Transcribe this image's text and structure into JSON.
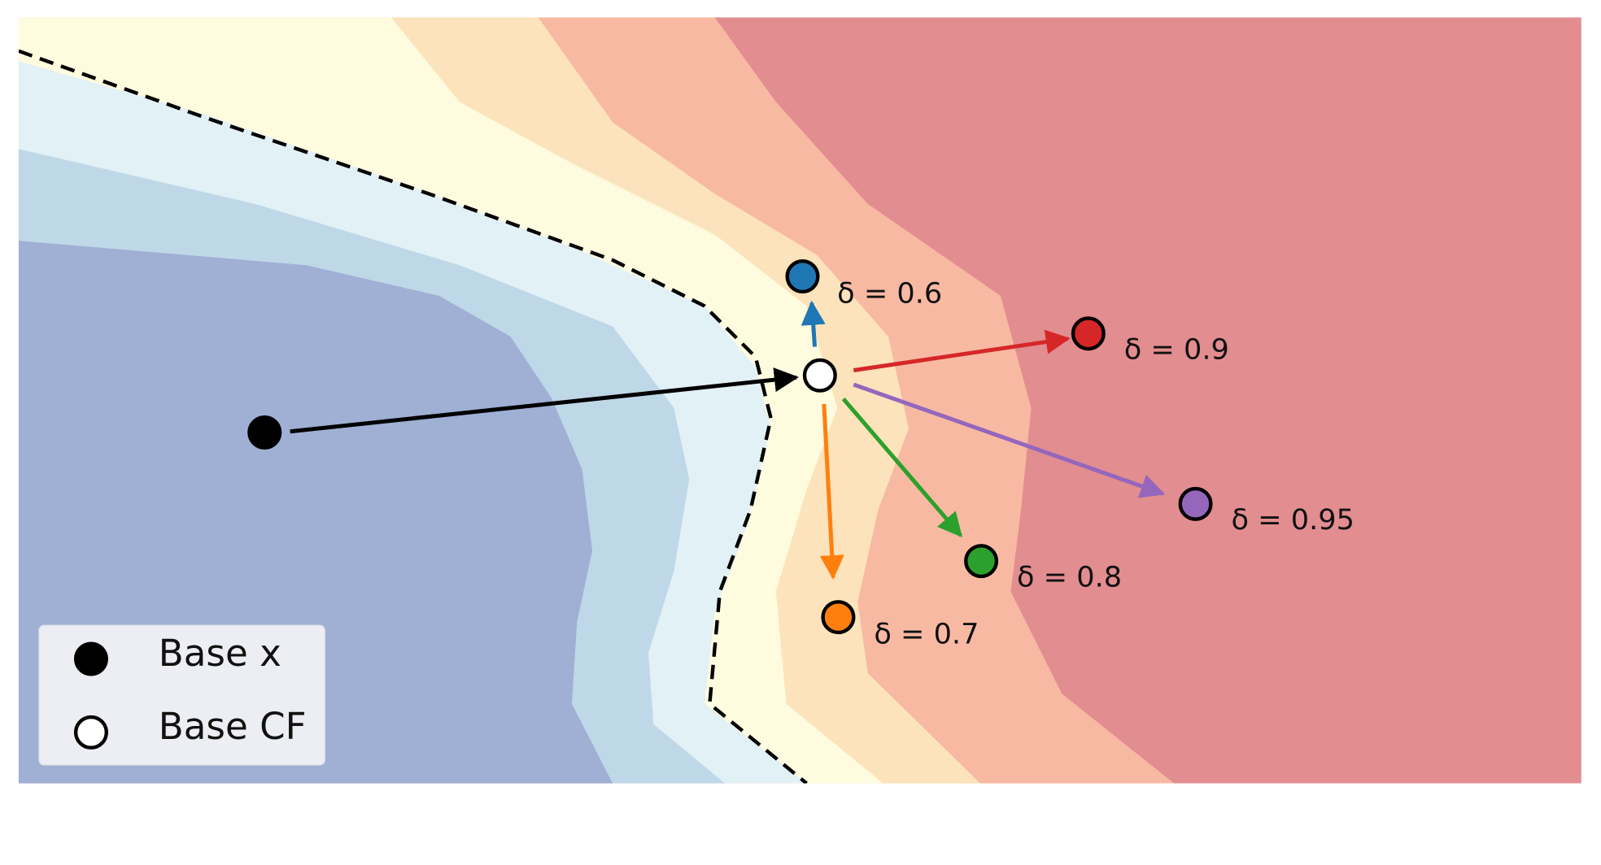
{
  "counterfactuals": [
    {
      "label": "δ = 0.6"
    },
    {
      "label": "δ = 0.9"
    },
    {
      "label": "δ = 0.95"
    },
    {
      "label": "δ = 0.8"
    },
    {
      "label": "δ = 0.7"
    }
  ],
  "legend": {
    "items": [
      "Base x",
      "Base CF"
    ]
  }
}
